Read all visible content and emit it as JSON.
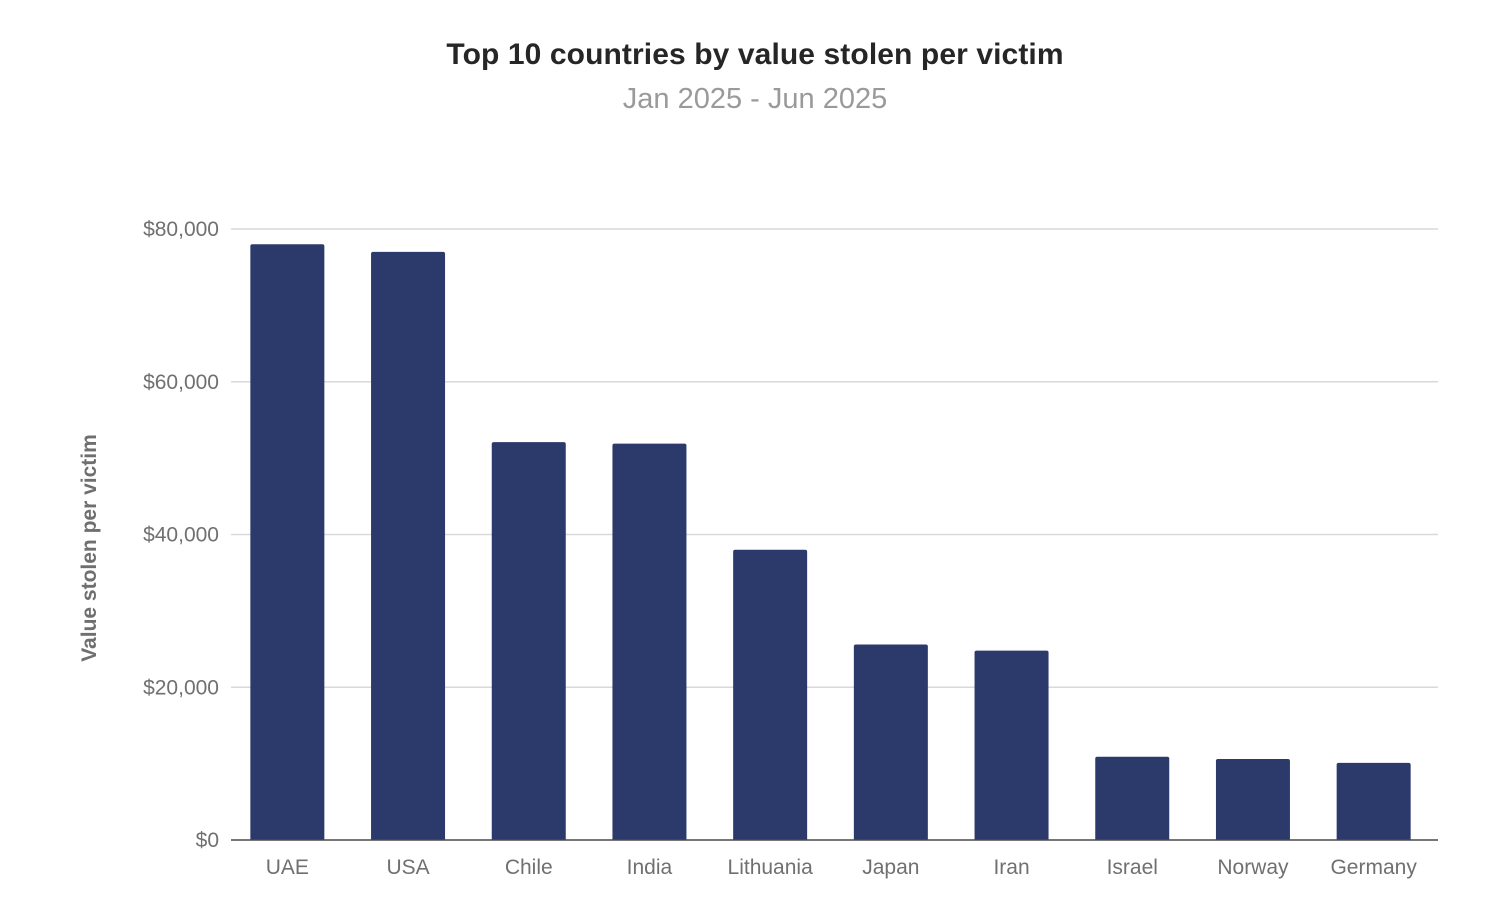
{
  "chart_data": {
    "type": "bar",
    "title": "Top 10 countries by value stolen per victim",
    "subtitle": "Jan 2025 - Jun 2025",
    "xlabel": "",
    "ylabel": "Value stolen per victim",
    "categories": [
      "UAE",
      "USA",
      "Chile",
      "India",
      "Lithuania",
      "Japan",
      "Iran",
      "Israel",
      "Norway",
      "Germany"
    ],
    "values": [
      78000,
      77000,
      52100,
      51900,
      38000,
      25600,
      24800,
      10900,
      10600,
      10100
    ],
    "ylim": [
      0,
      80000
    ],
    "yticks": [
      0,
      20000,
      40000,
      60000,
      80000
    ],
    "ytick_labels": [
      "$0",
      "$20,000",
      "$40,000",
      "$60,000",
      "$80,000"
    ],
    "bar_color": "#2c396b",
    "grid": true,
    "legend": "none"
  }
}
